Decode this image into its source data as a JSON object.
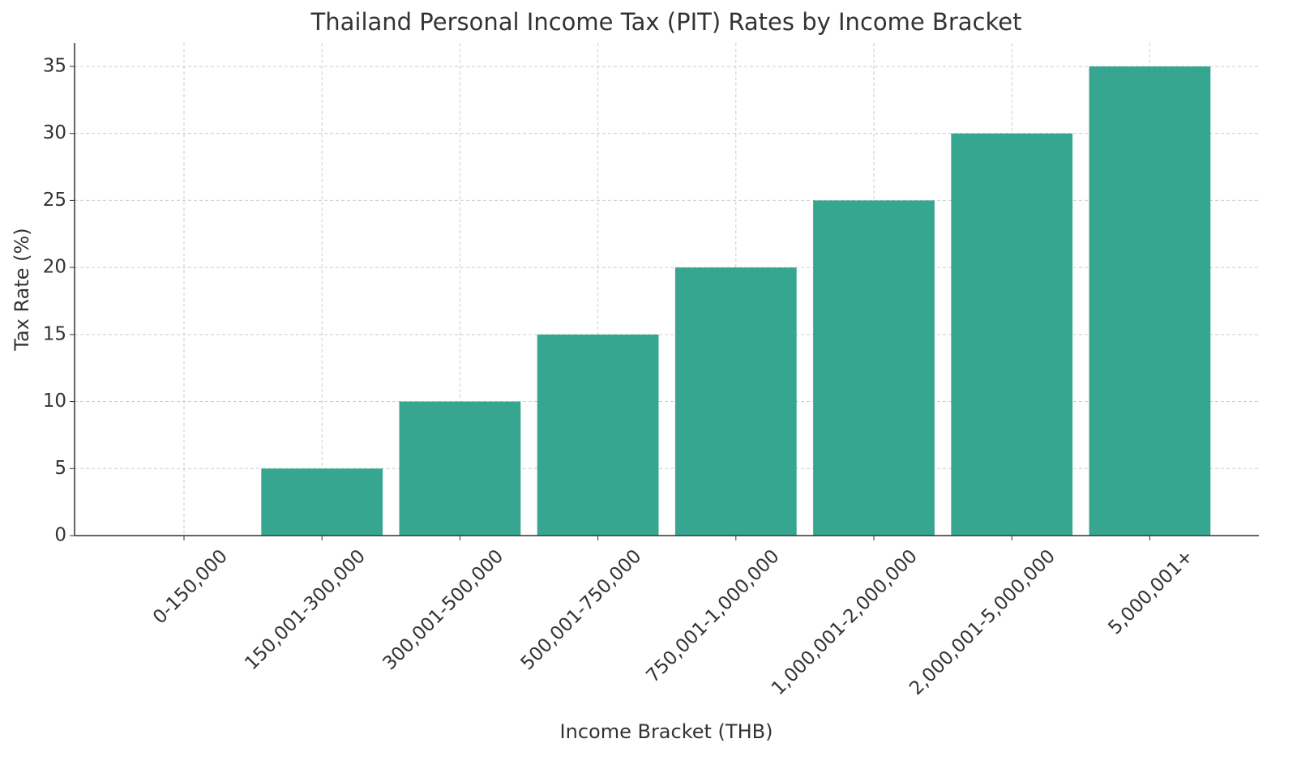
{
  "chart_data": {
    "type": "bar",
    "title": "Thailand Personal Income Tax (PIT) Rates by Income Bracket",
    "x_label": "Income Bracket (THB)",
    "y_label": "Tax Rate (%)",
    "categories": [
      "0-150,000",
      "150,001-300,000",
      "300,001-500,000",
      "500,001-750,000",
      "750,001-1,000,000",
      "1,000,001-2,000,000",
      "2,000,001-5,000,000",
      "5,000,001+"
    ],
    "values": [
      0,
      5,
      10,
      15,
      20,
      25,
      30,
      35
    ],
    "color": "#36a690",
    "ylim": [
      0,
      36.75
    ],
    "yticks": [
      0,
      5,
      10,
      15,
      20,
      25,
      30,
      35
    ],
    "grid": true
  }
}
